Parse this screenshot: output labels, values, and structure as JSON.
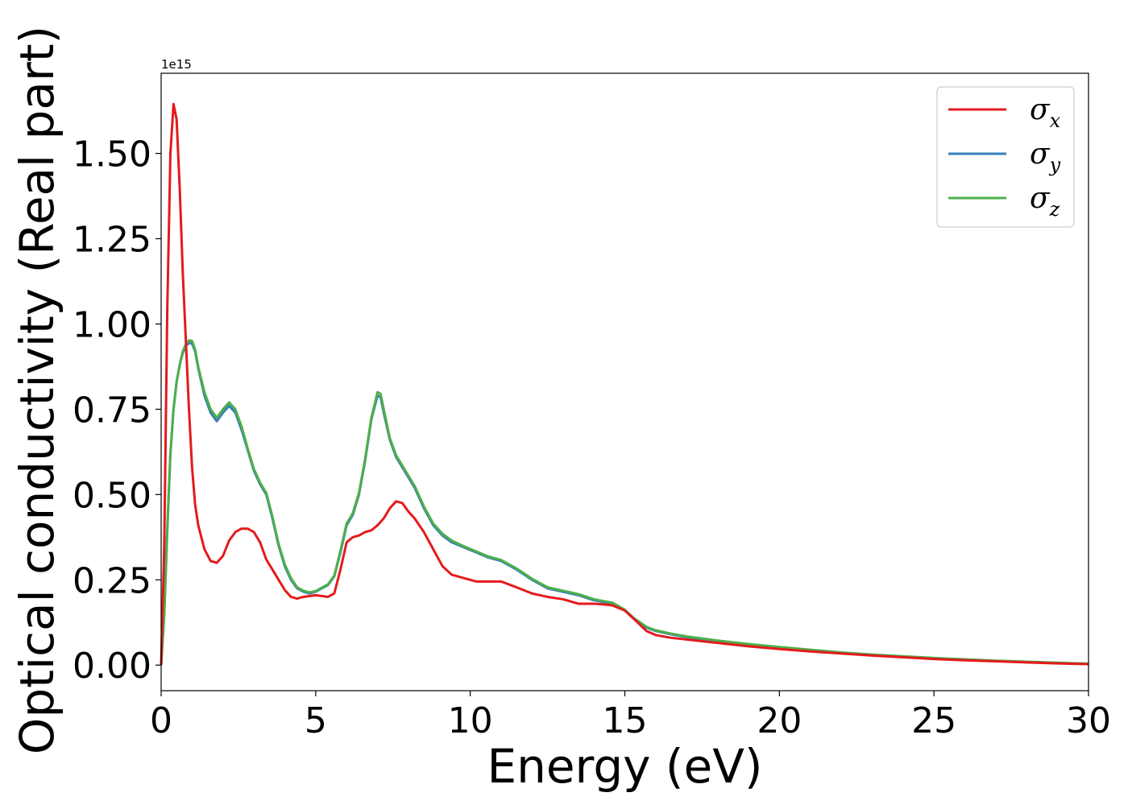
{
  "chart_data": {
    "type": "line",
    "xlabel": "Energy (eV)",
    "ylabel": "Optical conductivity (Real part)",
    "offset_text": "1e15",
    "xlim": [
      0,
      30
    ],
    "ylim": [
      -0.075,
      1.735
    ],
    "x_ticks": [
      0,
      5,
      10,
      15,
      20,
      25,
      30
    ],
    "x_tick_labels": [
      "0",
      "5",
      "10",
      "15",
      "20",
      "25",
      "30"
    ],
    "y_ticks": [
      0.0,
      0.25,
      0.5,
      0.75,
      1.0,
      1.25,
      1.5
    ],
    "y_tick_labels": [
      "0.00",
      "0.25",
      "0.50",
      "0.75",
      "1.00",
      "1.25",
      "1.50"
    ],
    "grid": false,
    "legend_position": "top-right",
    "series": [
      {
        "name": "σ",
        "subscript": "x",
        "color": "#e41a1c",
        "points": [
          [
            0,
            0
          ],
          [
            0.1,
            0.35
          ],
          [
            0.2,
            1.05
          ],
          [
            0.3,
            1.5
          ],
          [
            0.4,
            1.645
          ],
          [
            0.5,
            1.6
          ],
          [
            0.6,
            1.4
          ],
          [
            0.7,
            1.15
          ],
          [
            0.8,
            0.95
          ],
          [
            0.9,
            0.75
          ],
          [
            1.0,
            0.58
          ],
          [
            1.1,
            0.47
          ],
          [
            1.2,
            0.41
          ],
          [
            1.4,
            0.34
          ],
          [
            1.6,
            0.305
          ],
          [
            1.8,
            0.3
          ],
          [
            2.0,
            0.32
          ],
          [
            2.2,
            0.365
          ],
          [
            2.4,
            0.39
          ],
          [
            2.6,
            0.4
          ],
          [
            2.8,
            0.4
          ],
          [
            3.0,
            0.39
          ],
          [
            3.2,
            0.36
          ],
          [
            3.4,
            0.31
          ],
          [
            3.6,
            0.28
          ],
          [
            3.8,
            0.25
          ],
          [
            4.0,
            0.22
          ],
          [
            4.2,
            0.2
          ],
          [
            4.4,
            0.195
          ],
          [
            4.6,
            0.2
          ],
          [
            5.0,
            0.205
          ],
          [
            5.4,
            0.2
          ],
          [
            5.6,
            0.21
          ],
          [
            5.8,
            0.28
          ],
          [
            6.0,
            0.36
          ],
          [
            6.2,
            0.375
          ],
          [
            6.4,
            0.38
          ],
          [
            6.6,
            0.39
          ],
          [
            6.8,
            0.395
          ],
          [
            7.0,
            0.41
          ],
          [
            7.2,
            0.43
          ],
          [
            7.4,
            0.46
          ],
          [
            7.6,
            0.48
          ],
          [
            7.8,
            0.475
          ],
          [
            8.0,
            0.45
          ],
          [
            8.2,
            0.43
          ],
          [
            8.5,
            0.39
          ],
          [
            8.8,
            0.34
          ],
          [
            9.1,
            0.29
          ],
          [
            9.4,
            0.265
          ],
          [
            9.8,
            0.255
          ],
          [
            10.2,
            0.245
          ],
          [
            10.6,
            0.245
          ],
          [
            11.0,
            0.245
          ],
          [
            11.5,
            0.228
          ],
          [
            12.0,
            0.21
          ],
          [
            12.5,
            0.2
          ],
          [
            13.0,
            0.193
          ],
          [
            13.5,
            0.18
          ],
          [
            14.0,
            0.18
          ],
          [
            14.3,
            0.178
          ],
          [
            14.6,
            0.175
          ],
          [
            15.0,
            0.16
          ],
          [
            15.3,
            0.135
          ],
          [
            15.7,
            0.1
          ],
          [
            16.0,
            0.088
          ],
          [
            16.5,
            0.08
          ],
          [
            17.0,
            0.075
          ],
          [
            18.0,
            0.065
          ],
          [
            19.0,
            0.055
          ],
          [
            20.0,
            0.047
          ],
          [
            21.0,
            0.04
          ],
          [
            22.0,
            0.034
          ],
          [
            23.0,
            0.028
          ],
          [
            24.0,
            0.023
          ],
          [
            25.0,
            0.018
          ],
          [
            26.0,
            0.014
          ],
          [
            27.0,
            0.011
          ],
          [
            28.0,
            0.008
          ],
          [
            29.0,
            0.005
          ],
          [
            30.0,
            0.003
          ]
        ]
      },
      {
        "name": "σ",
        "subscript": "y",
        "color": "#377eb8",
        "points": [
          [
            0,
            0
          ],
          [
            0.1,
            0.15
          ],
          [
            0.2,
            0.4
          ],
          [
            0.3,
            0.62
          ],
          [
            0.4,
            0.75
          ],
          [
            0.5,
            0.83
          ],
          [
            0.6,
            0.88
          ],
          [
            0.7,
            0.915
          ],
          [
            0.8,
            0.935
          ],
          [
            0.9,
            0.945
          ],
          [
            1.0,
            0.942
          ],
          [
            1.1,
            0.92
          ],
          [
            1.2,
            0.87
          ],
          [
            1.4,
            0.79
          ],
          [
            1.6,
            0.74
          ],
          [
            1.8,
            0.715
          ],
          [
            2.0,
            0.74
          ],
          [
            2.2,
            0.76
          ],
          [
            2.4,
            0.74
          ],
          [
            2.6,
            0.69
          ],
          [
            2.8,
            0.63
          ],
          [
            3.0,
            0.57
          ],
          [
            3.2,
            0.53
          ],
          [
            3.4,
            0.5
          ],
          [
            3.6,
            0.43
          ],
          [
            3.8,
            0.35
          ],
          [
            4.0,
            0.29
          ],
          [
            4.2,
            0.25
          ],
          [
            4.4,
            0.225
          ],
          [
            4.6,
            0.215
          ],
          [
            4.8,
            0.21
          ],
          [
            5.0,
            0.215
          ],
          [
            5.2,
            0.225
          ],
          [
            5.4,
            0.235
          ],
          [
            5.6,
            0.26
          ],
          [
            5.8,
            0.33
          ],
          [
            6.0,
            0.41
          ],
          [
            6.2,
            0.44
          ],
          [
            6.4,
            0.5
          ],
          [
            6.6,
            0.6
          ],
          [
            6.8,
            0.72
          ],
          [
            7.0,
            0.79
          ],
          [
            7.1,
            0.785
          ],
          [
            7.2,
            0.74
          ],
          [
            7.4,
            0.66
          ],
          [
            7.6,
            0.61
          ],
          [
            7.8,
            0.58
          ],
          [
            8.0,
            0.55
          ],
          [
            8.2,
            0.52
          ],
          [
            8.5,
            0.46
          ],
          [
            8.8,
            0.41
          ],
          [
            9.1,
            0.38
          ],
          [
            9.4,
            0.36
          ],
          [
            9.8,
            0.345
          ],
          [
            10.2,
            0.33
          ],
          [
            10.6,
            0.315
          ],
          [
            11.0,
            0.305
          ],
          [
            11.5,
            0.28
          ],
          [
            12.0,
            0.25
          ],
          [
            12.5,
            0.225
          ],
          [
            13.0,
            0.215
          ],
          [
            13.5,
            0.205
          ],
          [
            14.0,
            0.19
          ],
          [
            14.3,
            0.185
          ],
          [
            14.6,
            0.18
          ],
          [
            15.0,
            0.16
          ],
          [
            15.3,
            0.135
          ],
          [
            15.7,
            0.11
          ],
          [
            16.0,
            0.1
          ],
          [
            16.5,
            0.09
          ],
          [
            17.0,
            0.082
          ],
          [
            18.0,
            0.07
          ],
          [
            19.0,
            0.06
          ],
          [
            20.0,
            0.051
          ],
          [
            21.0,
            0.043
          ],
          [
            22.0,
            0.036
          ],
          [
            23.0,
            0.03
          ],
          [
            24.0,
            0.025
          ],
          [
            25.0,
            0.02
          ],
          [
            26.0,
            0.016
          ],
          [
            27.0,
            0.012
          ],
          [
            28.0,
            0.009
          ],
          [
            29.0,
            0.006
          ],
          [
            30.0,
            0.004
          ]
        ]
      },
      {
        "name": "σ",
        "subscript": "z",
        "color": "#4daf4a",
        "points": [
          [
            0,
            0
          ],
          [
            0.1,
            0.15
          ],
          [
            0.2,
            0.4
          ],
          [
            0.3,
            0.62
          ],
          [
            0.4,
            0.75
          ],
          [
            0.5,
            0.83
          ],
          [
            0.6,
            0.88
          ],
          [
            0.7,
            0.92
          ],
          [
            0.8,
            0.94
          ],
          [
            0.9,
            0.952
          ],
          [
            1.0,
            0.95
          ],
          [
            1.1,
            0.925
          ],
          [
            1.2,
            0.875
          ],
          [
            1.4,
            0.8
          ],
          [
            1.6,
            0.75
          ],
          [
            1.8,
            0.725
          ],
          [
            2.0,
            0.75
          ],
          [
            2.2,
            0.77
          ],
          [
            2.4,
            0.75
          ],
          [
            2.6,
            0.7
          ],
          [
            2.8,
            0.635
          ],
          [
            3.0,
            0.575
          ],
          [
            3.2,
            0.535
          ],
          [
            3.4,
            0.505
          ],
          [
            3.6,
            0.435
          ],
          [
            3.8,
            0.355
          ],
          [
            4.0,
            0.295
          ],
          [
            4.2,
            0.255
          ],
          [
            4.4,
            0.228
          ],
          [
            4.6,
            0.218
          ],
          [
            4.8,
            0.213
          ],
          [
            5.0,
            0.217
          ],
          [
            5.2,
            0.227
          ],
          [
            5.4,
            0.237
          ],
          [
            5.6,
            0.262
          ],
          [
            5.8,
            0.335
          ],
          [
            6.0,
            0.415
          ],
          [
            6.2,
            0.445
          ],
          [
            6.4,
            0.505
          ],
          [
            6.6,
            0.605
          ],
          [
            6.8,
            0.725
          ],
          [
            7.0,
            0.8
          ],
          [
            7.1,
            0.795
          ],
          [
            7.2,
            0.75
          ],
          [
            7.4,
            0.665
          ],
          [
            7.6,
            0.615
          ],
          [
            7.8,
            0.585
          ],
          [
            8.0,
            0.555
          ],
          [
            8.2,
            0.525
          ],
          [
            8.5,
            0.465
          ],
          [
            8.8,
            0.415
          ],
          [
            9.1,
            0.385
          ],
          [
            9.4,
            0.365
          ],
          [
            9.8,
            0.348
          ],
          [
            10.2,
            0.333
          ],
          [
            10.6,
            0.318
          ],
          [
            11.0,
            0.308
          ],
          [
            11.5,
            0.283
          ],
          [
            12.0,
            0.253
          ],
          [
            12.5,
            0.228
          ],
          [
            13.0,
            0.218
          ],
          [
            13.5,
            0.208
          ],
          [
            14.0,
            0.193
          ],
          [
            14.3,
            0.188
          ],
          [
            14.6,
            0.183
          ],
          [
            15.0,
            0.162
          ],
          [
            15.3,
            0.137
          ],
          [
            15.7,
            0.112
          ],
          [
            16.0,
            0.102
          ],
          [
            16.5,
            0.092
          ],
          [
            17.0,
            0.084
          ],
          [
            18.0,
            0.072
          ],
          [
            19.0,
            0.062
          ],
          [
            20.0,
            0.053
          ],
          [
            21.0,
            0.045
          ],
          [
            22.0,
            0.037
          ],
          [
            23.0,
            0.031
          ],
          [
            24.0,
            0.026
          ],
          [
            25.0,
            0.021
          ],
          [
            26.0,
            0.017
          ],
          [
            27.0,
            0.013
          ],
          [
            28.0,
            0.01
          ],
          [
            29.0,
            0.007
          ],
          [
            30.0,
            0.004
          ]
        ]
      }
    ]
  }
}
